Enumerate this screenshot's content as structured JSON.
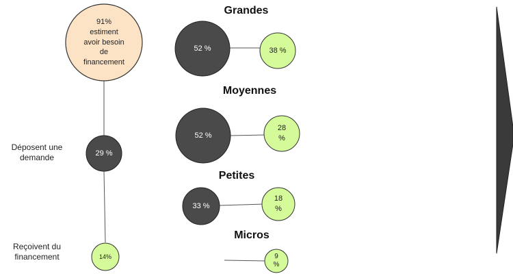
{
  "funnel": {
    "top": {
      "line1": "91%",
      "line2": "estiment",
      "line3": "avoir besoin",
      "line4": "de",
      "line5": "financement"
    },
    "apply": {
      "value": "29 %",
      "label_line1": "Déposent une",
      "label_line2": "demande"
    },
    "receive": {
      "value": "14%",
      "label_line1": "Reçoivent du",
      "label_line2": "financement"
    }
  },
  "groups": [
    {
      "title": "Grandes",
      "apply": "52 %",
      "receive_line1": "38 %",
      "receive_line2": ""
    },
    {
      "title": "Moyennes",
      "apply": "52 %",
      "receive_line1": "28",
      "receive_line2": "%"
    },
    {
      "title": "Petites",
      "apply": "33 %",
      "receive_line1": "18",
      "receive_line2": "%"
    },
    {
      "title": "Micros",
      "apply": "",
      "receive_line1": "9",
      "receive_line2": "%"
    }
  ],
  "colors": {
    "peach": "#fde3c6",
    "dark": "#4a4a4a",
    "lime": "#d4fa9a",
    "outline": "#333333"
  }
}
